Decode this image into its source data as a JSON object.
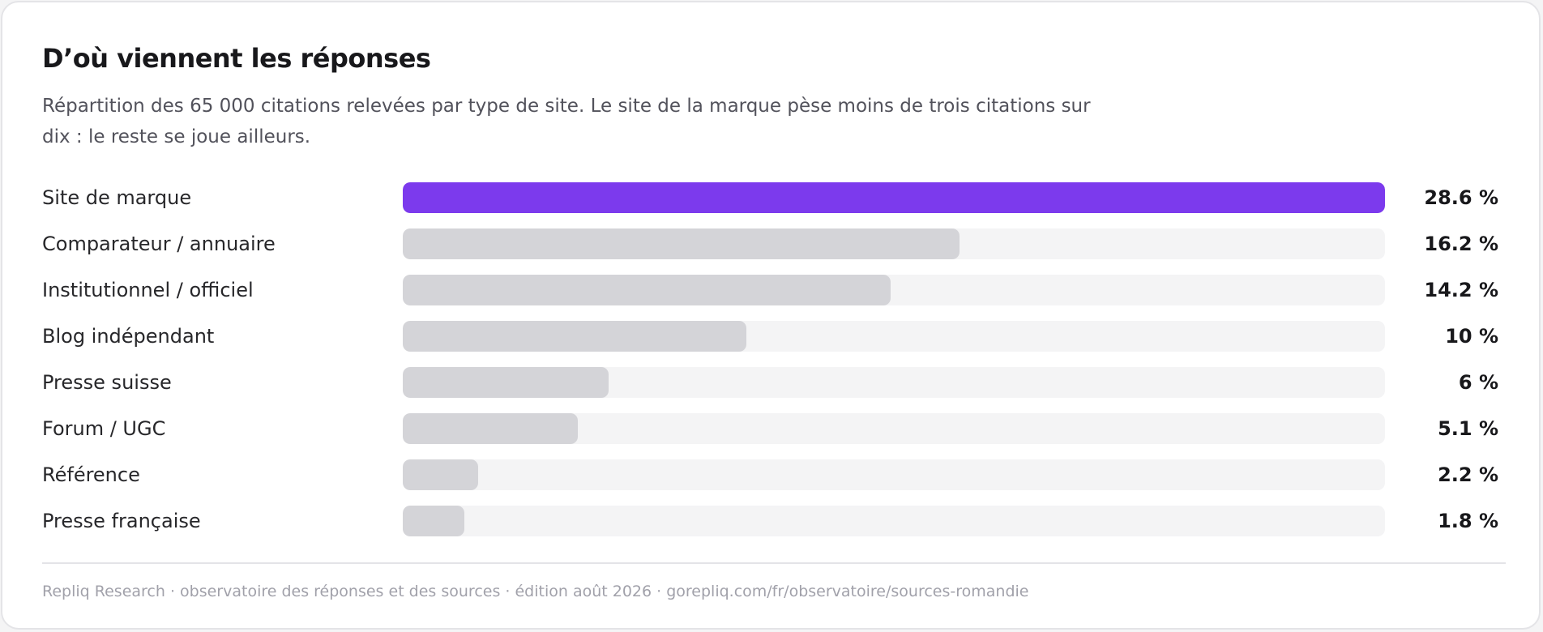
{
  "title": "D’où viennent les réponses",
  "subtitle": "Répartition des 65 000 citations relevées par type de site. Le site de la marque pèse moins de trois citations sur dix : le reste se joue ailleurs.",
  "footer": "Repliq Research · observatoire des réponses et des sources · édition août 2026 · gorepliq.com/fr/observatoire/sources-romandie",
  "colors": {
    "highlight": "#7c3aed",
    "bar": "#d4d4d8",
    "track": "#f4f4f5"
  },
  "chart_data": {
    "type": "bar",
    "orientation": "horizontal",
    "unit": "%",
    "categories": [
      "Site de marque",
      "Comparateur / annuaire",
      "Institutionnel / officiel",
      "Blog indépendant",
      "Presse suisse",
      "Forum / UGC",
      "Référence",
      "Presse française"
    ],
    "values": [
      28.6,
      16.2,
      14.2,
      10,
      6,
      5.1,
      2.2,
      1.8
    ],
    "value_labels": [
      "28.6 %",
      "16.2 %",
      "14.2 %",
      "10 %",
      "6 %",
      "5.1 %",
      "2.2 %",
      "1.8 %"
    ],
    "highlighted_category": "Site de marque",
    "xlim": [
      0,
      28.6
    ],
    "grid": false,
    "legend": "none"
  }
}
